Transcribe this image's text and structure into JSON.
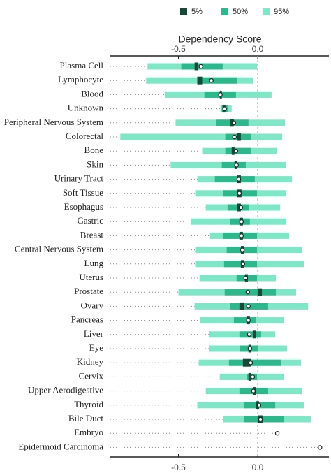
{
  "chart_data": {
    "type": "interval",
    "title": "Dependency Score",
    "categories": [
      "Plasma Cell",
      "Lymphocyte",
      "Blood",
      "Unknown",
      "Peripheral Nervous System",
      "Colorectal",
      "Bone",
      "Skin",
      "Urinary Tract",
      "Soft Tissue",
      "Esophagus",
      "Gastric",
      "Breast",
      "Central Nervous System",
      "Lung",
      "Uterus",
      "Prostate",
      "Ovary",
      "Pancreas",
      "Liver",
      "Eye",
      "Kidney",
      "Cervix",
      "Upper Aerodigestive",
      "Thyroid",
      "Bile Duct",
      "Embryo",
      "Epidermoid Carcinoma"
    ],
    "series": [
      {
        "name": "95%",
        "color": "#7fe6c6",
        "low": [
          -0.695,
          -0.704,
          -0.584,
          -0.235,
          -0.518,
          -0.867,
          -0.35,
          -0.549,
          -0.381,
          -0.394,
          -0.327,
          -0.42,
          -0.301,
          -0.394,
          -0.394,
          -0.367,
          -0.5,
          -0.398,
          -0.363,
          -0.305,
          -0.305,
          -0.372,
          -0.239,
          -0.327,
          -0.381,
          -0.217,
          null,
          null
        ],
        "high": [
          -0.004,
          -0.027,
          0.088,
          -0.164,
          0.173,
          0.155,
          0.124,
          0.177,
          0.217,
          0.181,
          0.142,
          0.181,
          0.199,
          0.279,
          0.292,
          0.115,
          0.243,
          0.319,
          0.164,
          0.111,
          0.186,
          0.274,
          0.164,
          0.279,
          0.292,
          0.336,
          null,
          null
        ]
      },
      {
        "name": "50%",
        "color": "#2db88b",
        "low": [
          -0.482,
          -0.363,
          -0.336,
          -0.226,
          -0.261,
          -0.204,
          -0.204,
          -0.226,
          -0.27,
          -0.217,
          -0.19,
          -0.173,
          -0.217,
          -0.195,
          -0.212,
          -0.133,
          -0.208,
          -0.173,
          -0.15,
          -0.115,
          -0.111,
          -0.181,
          -0.066,
          -0.115,
          -0.088,
          -0.088,
          null,
          null
        ],
        "high": [
          -0.221,
          -0.128,
          -0.137,
          -0.19,
          -0.058,
          -0.044,
          -0.044,
          -0.075,
          -0.018,
          -0.004,
          -0.053,
          -0.049,
          -0.004,
          -0.004,
          -0.004,
          -0.004,
          0.115,
          0.066,
          -0.013,
          0.022,
          0.0,
          0.146,
          -0.004,
          0.066,
          0.111,
          0.168,
          null,
          null
        ]
      },
      {
        "name": "5%",
        "color": "#164a37",
        "low": [
          -0.398,
          -0.381,
          -0.239,
          -0.221,
          -0.173,
          -0.128,
          -0.164,
          -0.146,
          -0.128,
          -0.128,
          -0.128,
          -0.115,
          -0.115,
          -0.106,
          -0.106,
          -0.08,
          0.0,
          -0.115,
          -0.071,
          -0.031,
          -0.058,
          -0.093,
          -0.058,
          -0.031,
          -0.009,
          0.0,
          null,
          null
        ],
        "high": [
          -0.376,
          -0.35,
          -0.226,
          -0.204,
          -0.15,
          -0.106,
          -0.146,
          -0.128,
          -0.106,
          -0.102,
          -0.106,
          -0.093,
          -0.093,
          -0.084,
          -0.084,
          -0.062,
          0.027,
          -0.084,
          -0.049,
          -0.013,
          -0.04,
          -0.04,
          -0.04,
          -0.013,
          0.009,
          0.031,
          null,
          null
        ]
      }
    ],
    "points": [
      -0.358,
      -0.292,
      -0.235,
      -0.208,
      -0.15,
      -0.146,
      -0.137,
      -0.133,
      -0.119,
      -0.115,
      -0.106,
      -0.102,
      -0.102,
      -0.097,
      -0.093,
      -0.075,
      -0.062,
      -0.058,
      -0.058,
      -0.053,
      -0.049,
      -0.044,
      -0.031,
      -0.027,
      0.009,
      0.018,
      0.124,
      0.394
    ],
    "xlim": [
      -0.93,
      0.45
    ],
    "xticks": [
      -0.5,
      {
        "value": 0,
        "label": "0.0"
      }
    ],
    "legend_order": [
      "5%",
      "50%",
      "95%"
    ]
  }
}
